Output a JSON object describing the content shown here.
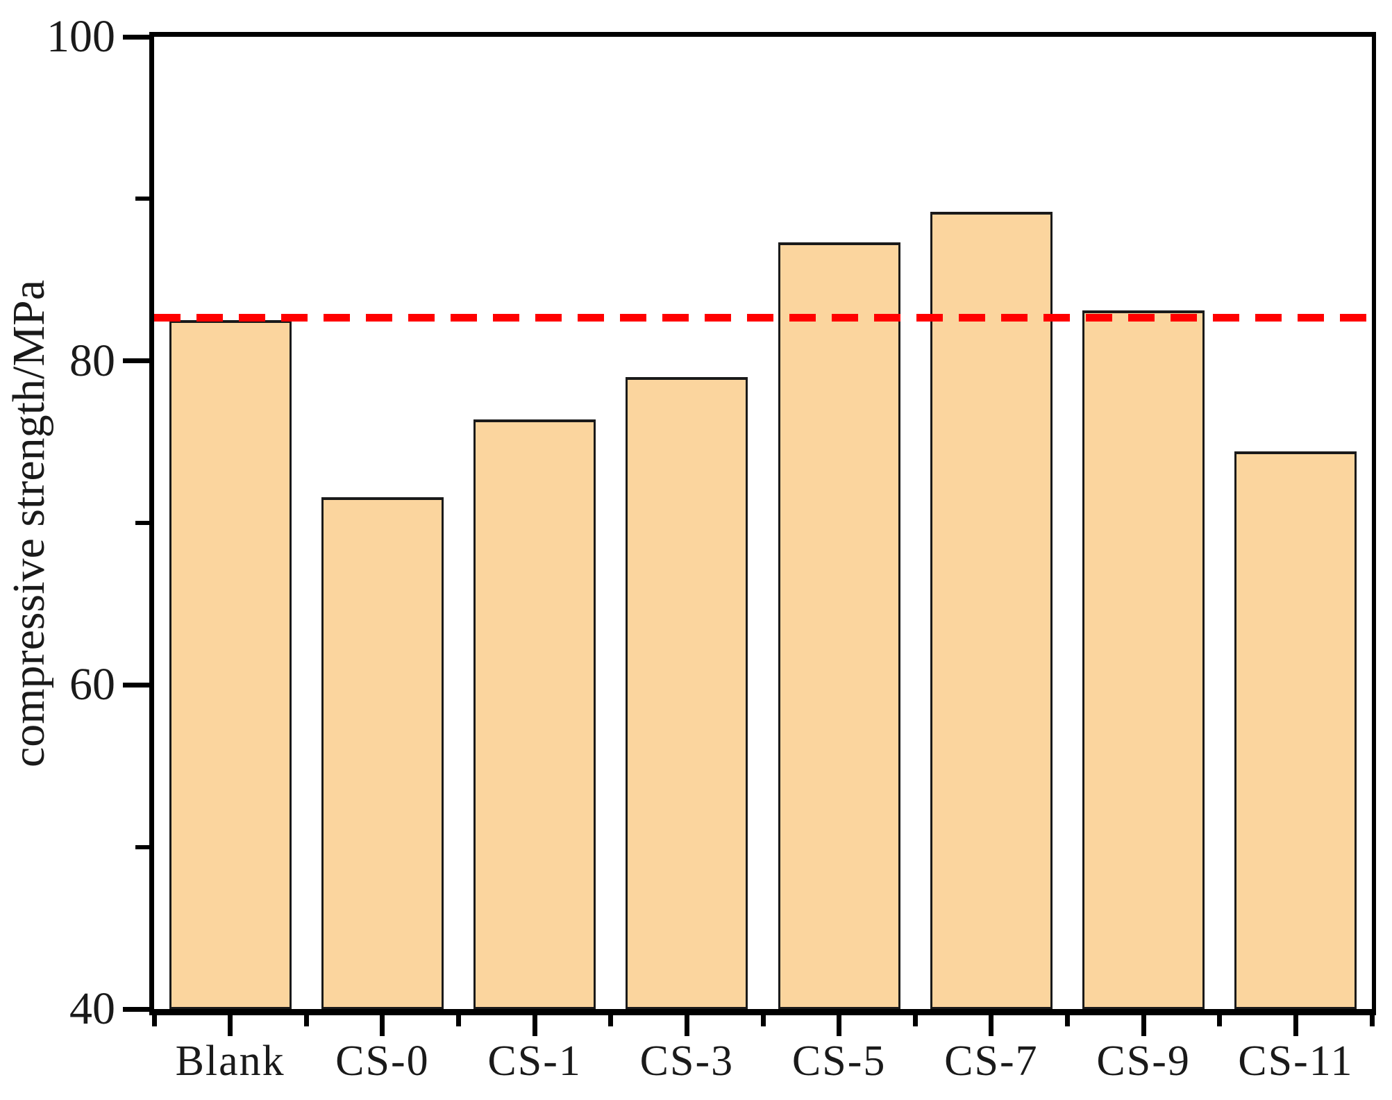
{
  "figure": {
    "background": "#ffffff"
  },
  "chart_data": {
    "type": "bar",
    "title": "",
    "xlabel": "",
    "ylabel": "compressive strength/MPa",
    "categories": [
      "Blank",
      "CS-0",
      "CS-1",
      "CS-3",
      "CS-5",
      "CS-7",
      "CS-9",
      "CS-11"
    ],
    "values": [
      82.5,
      71.6,
      76.4,
      79.0,
      87.3,
      89.2,
      83.1,
      74.4
    ],
    "ylim": [
      40,
      100
    ],
    "yticks_major": {
      "values": [
        40,
        60,
        80,
        100
      ],
      "labels": [
        "40",
        "60",
        "80",
        "100"
      ]
    },
    "yticks_minor": [
      50,
      70,
      90
    ],
    "reference_line": {
      "value": 82.7,
      "style": "dashed",
      "color": "#ff0000"
    },
    "bar_fill": "#fbd59e",
    "bar_border": "#1a1a1a",
    "axis_color": "#000000",
    "grid": false,
    "legend": false
  }
}
